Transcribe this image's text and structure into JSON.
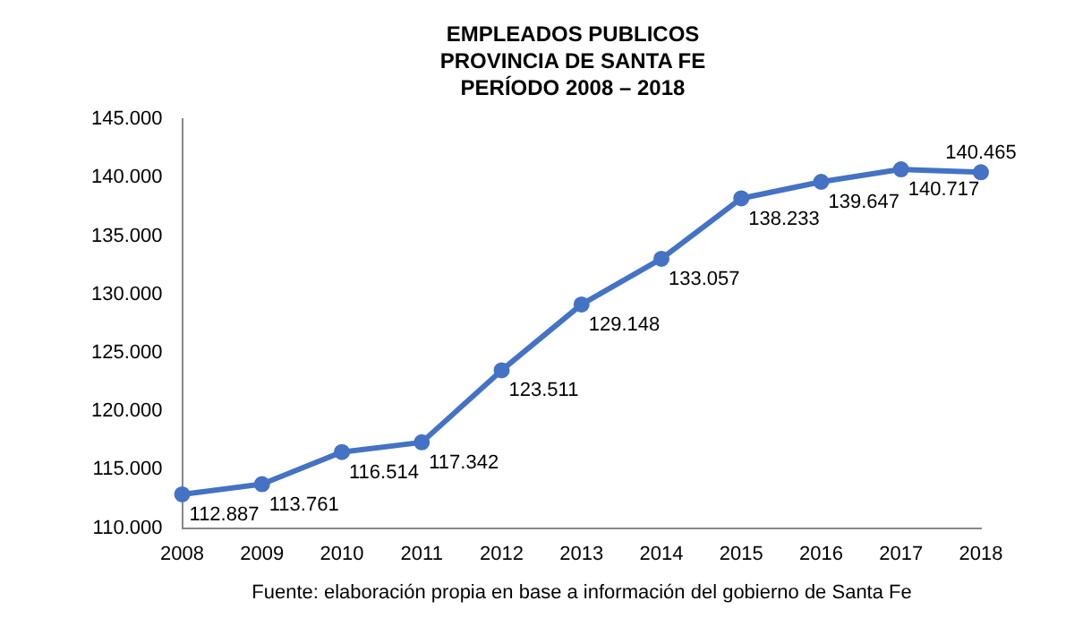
{
  "chart_data": {
    "type": "line",
    "title": "EMPLEADOS PUBLICOS\nPROVINCIA DE SANTA FE\nPERÍODO 2008 – 2018",
    "categories": [
      "2008",
      "2009",
      "2010",
      "2011",
      "2012",
      "2013",
      "2014",
      "2015",
      "2016",
      "2017",
      "2018"
    ],
    "series": [
      {
        "color": "#4472c4",
        "values": [
          112887,
          113761,
          116514,
          117342,
          123511,
          129148,
          133057,
          138233,
          139647,
          140717,
          140465
        ],
        "value_labels": [
          "112.887",
          "113.761",
          "116.514",
          "117.342",
          "123.511",
          "129.148",
          "133.057",
          "138.233",
          "139.647",
          "140.717",
          "140.465"
        ]
      }
    ],
    "ylim": [
      110000,
      145000
    ],
    "yticks": [
      {
        "value": 110000,
        "label": "110.000"
      },
      {
        "value": 115000,
        "label": "115.000"
      },
      {
        "value": 120000,
        "label": "120.000"
      },
      {
        "value": 125000,
        "label": "125.000"
      },
      {
        "value": 130000,
        "label": "130.000"
      },
      {
        "value": 135000,
        "label": "135.000"
      },
      {
        "value": 140000,
        "label": "140.000"
      },
      {
        "value": 145000,
        "label": "145.000"
      }
    ],
    "grid": false,
    "legend": false,
    "marker": "circle",
    "line_style": "solid",
    "annotations": [
      "Fuente: elaboración propia en base a información del gobierno de Santa Fe"
    ]
  }
}
